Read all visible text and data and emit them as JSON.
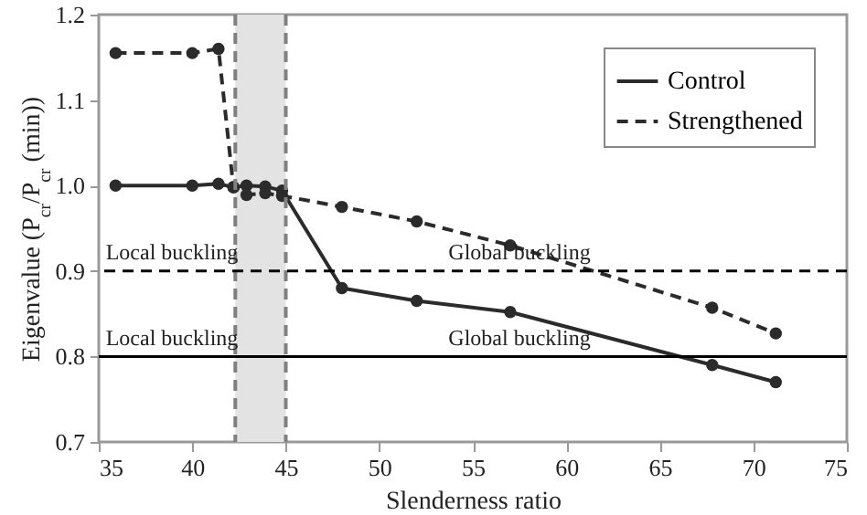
{
  "chart_data": {
    "type": "line",
    "xlabel": "Slenderness ratio",
    "ylabel": "Eigenvalue (P$_{cr}$/P$_{cr}$ (min))",
    "xlim": [
      35,
      75
    ],
    "xticks": [
      35,
      40,
      45,
      50,
      55,
      60,
      65,
      70,
      75
    ],
    "ylim": [
      0.7,
      1.2
    ],
    "yticks": [
      0.7,
      0.8,
      0.9,
      {
        "value": 1,
        "label": "1.0"
      },
      1.1,
      1.2
    ],
    "grid": false,
    "legend": "top right",
    "marker": "circle",
    "series": [
      {
        "name": "Control",
        "color": "#2b2b2b",
        "line_style": "solid",
        "x": [
          35.9,
          40.0,
          41.4,
          42.2,
          42.9,
          43.9,
          44.8,
          48,
          52,
          57,
          67.8,
          71.2
        ],
        "values": [
          1.0,
          1.0,
          1.002,
          0.998,
          1.0,
          0.999,
          0.994,
          0.88,
          0.865,
          0.852,
          0.79,
          0.77
        ]
      },
      {
        "name": "Strengthened",
        "color": "#2b2b2b",
        "line_style": "dashed",
        "x": [
          35.9,
          40.0,
          41.4,
          42.2,
          42.9,
          43.9,
          44.8,
          48,
          52,
          57,
          67.8,
          71.2
        ],
        "values": [
          1.155,
          1.155,
          1.16,
          0.998,
          0.989,
          0.991,
          0.988,
          0.975,
          0.958,
          0.93,
          0.857,
          0.827
        ]
      }
    ],
    "bands": [
      {
        "axis": "x",
        "from": 42.3,
        "to": 45,
        "color": "#e3e3e3"
      }
    ],
    "ref_lines": [
      {
        "axis": "x",
        "value": 42.3,
        "color": "#808080",
        "line_style": "dashed"
      },
      {
        "axis": "x",
        "value": 45,
        "color": "#808080",
        "line_style": "dashed"
      },
      {
        "axis": "y",
        "value": 0.9,
        "color": "#000000",
        "line_style": "dashed"
      },
      {
        "axis": "y",
        "value": 0.8,
        "color": "#000000",
        "line_style": "solid"
      }
    ],
    "annotations": [
      "Local buckling",
      "Global buckling",
      "Local buckling",
      "Global buckling"
    ]
  }
}
